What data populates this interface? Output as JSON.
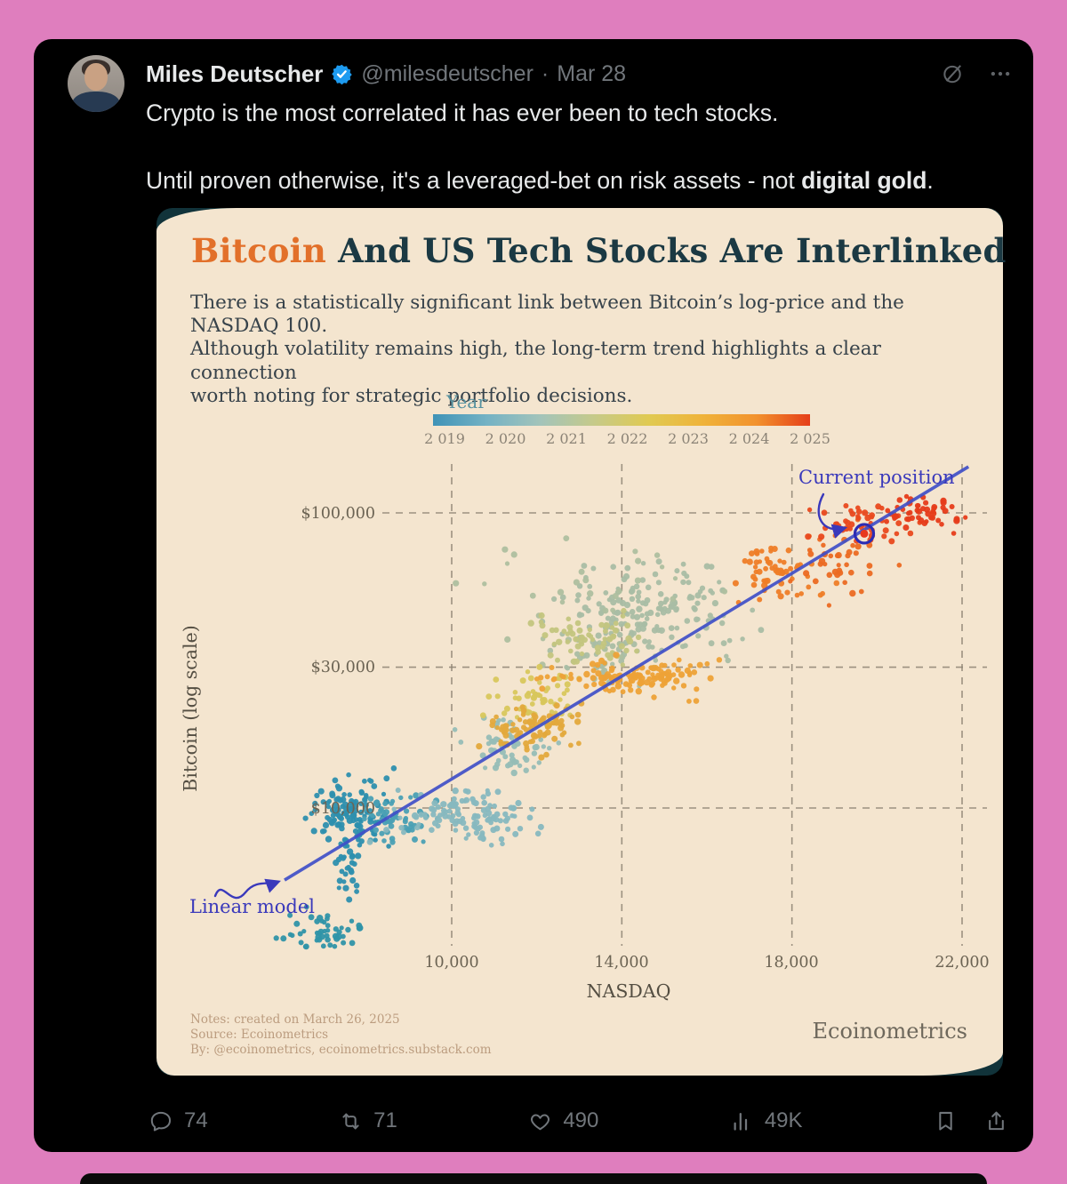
{
  "tweet": {
    "author": "Miles Deutscher",
    "handle": "@milesdeutscher",
    "separator": "·",
    "date": "Mar 28",
    "text_line1": "Crypto is the most correlated it has ever been to tech stocks.",
    "text_line2_prefix": "Until proven otherwise, it's a leveraged-bet on risk assets - not ",
    "text_line2_bold": "digital gold",
    "text_line2_suffix": ".",
    "footer": {
      "replies": "74",
      "reposts": "71",
      "likes": "490",
      "views": "49K"
    }
  },
  "chart": {
    "title_accent": "Bitcoin",
    "title_rest": " And US Tech Stocks Are Interlinked",
    "subtitle": "There is a statistically significant link between Bitcoin’s log-price and the NASDAQ 100.\nAlthough volatility remains high, the long-term trend highlights a clear connection\nworth noting for strategic portfolio decisions.",
    "legend": {
      "label": "Year",
      "ticks": [
        "2 019",
        "2 020",
        "2 021",
        "2 022",
        "2 023",
        "2 024",
        "2 025"
      ]
    },
    "axes": {
      "x_label": "NASDAQ",
      "y_label": "Bitcoin (log scale)",
      "x_tick_labels": [
        "10,000",
        "14,000",
        "18,000",
        "22,000"
      ],
      "y_tick_labels": [
        "$100,000",
        "$30,000",
        "$10,000"
      ]
    },
    "annotations": {
      "current_position": "Current position",
      "linear_model": "Linear model"
    },
    "notes": [
      "Notes: created on March 26, 2025",
      "Source: Ecoinometrics",
      "By: @ecoinometrics, ecoinometrics.substack.com"
    ],
    "brand": "Ecoinometrics"
  },
  "chart_data": {
    "type": "scatter",
    "title": "Bitcoin And US Tech Stocks Are Interlinked",
    "xlabel": "NASDAQ",
    "ylabel": "Bitcoin (log scale)",
    "x_scale": "linear",
    "y_scale": "log",
    "x_ticks": [
      10000,
      14000,
      18000,
      22000
    ],
    "y_ticks": [
      100000,
      30000,
      10000
    ],
    "x_range": [
      5200,
      23000
    ],
    "y_range": [
      3000,
      150000
    ],
    "grid": "dashed",
    "colorbar": {
      "label": "Year",
      "min": 2019,
      "max": 2025,
      "stops": [
        "#3f93b7",
        "#74b2c4",
        "#a3c4ba",
        "#c6ca89",
        "#e0ca52",
        "#efb33a",
        "#f2922d",
        "#e53e19"
      ]
    },
    "trend_line": {
      "color": "#4050c8",
      "x": [
        6070,
        22150
      ],
      "y": [
        5700,
        143400
      ]
    },
    "current_position": {
      "nasdaq": 19700,
      "btc": 85000,
      "ring_color": "#2c2cb4",
      "dot_color": "#e8391d"
    },
    "clusters": [
      {
        "year": 2019.0,
        "n": 120,
        "nasdaq": 7600,
        "btc": 9800,
        "sd_nasdaq": 420,
        "sd_log_btc": 0.055,
        "color": "#2d8fae"
      },
      {
        "year": 2019.2,
        "n": 28,
        "nasdaq": 7520,
        "btc": 6300,
        "sd_nasdaq": 170,
        "sd_log_btc": 0.055,
        "color": "#2d8fae"
      },
      {
        "year": 2019.1,
        "n": 48,
        "nasdaq": 7000,
        "btc": 3800,
        "sd_nasdaq": 520,
        "sd_log_btc": 0.032,
        "color": "#2f93a8"
      },
      {
        "year": 2019.8,
        "n": 55,
        "nasdaq": 8700,
        "btc": 9200,
        "sd_nasdaq": 420,
        "sd_log_btc": 0.038,
        "color": "#4aa0b4"
      },
      {
        "year": 2020.3,
        "n": 120,
        "nasdaq": 10300,
        "btc": 9400,
        "sd_nasdaq": 850,
        "sd_log_btc": 0.042,
        "color": "#87b8bf"
      },
      {
        "year": 2020.8,
        "n": 55,
        "nasdaq": 11400,
        "btc": 16000,
        "sd_nasdaq": 520,
        "sd_log_btc": 0.055,
        "color": "#96bdb6"
      },
      {
        "year": 2021.4,
        "n": 165,
        "nasdaq": 14700,
        "btc": 47000,
        "sd_nasdaq": 950,
        "sd_log_btc": 0.075,
        "color": "#a9bda4"
      },
      {
        "year": 2021.6,
        "n": 45,
        "nasdaq": 13700,
        "btc": 33500,
        "sd_nasdaq": 550,
        "sd_log_btc": 0.05,
        "color": "#a9bda4"
      },
      {
        "year": 2021.9,
        "n": 35,
        "nasdaq": 13500,
        "btc": 52000,
        "sd_nasdaq": 1500,
        "sd_log_btc": 0.11,
        "color": "#aebf9f"
      },
      {
        "year": 2022.1,
        "n": 65,
        "nasdaq": 13100,
        "btc": 37000,
        "sd_nasdaq": 650,
        "sd_log_btc": 0.05,
        "color": "#c3c57e"
      },
      {
        "year": 2022.4,
        "n": 60,
        "nasdaq": 12100,
        "btc": 24000,
        "sd_nasdaq": 600,
        "sd_log_btc": 0.05,
        "color": "#d8c75c"
      },
      {
        "year": 2022.8,
        "n": 85,
        "nasdaq": 11800,
        "btc": 18500,
        "sd_nasdaq": 550,
        "sd_log_btc": 0.04,
        "color": "#e3a93c"
      },
      {
        "year": 2023.5,
        "n": 130,
        "nasdaq": 14300,
        "btc": 27800,
        "sd_nasdaq": 1000,
        "sd_log_btc": 0.028,
        "color": "#eda237"
      },
      {
        "year": 2024.2,
        "n": 60,
        "nasdaq": 17600,
        "btc": 62000,
        "sd_nasdaq": 480,
        "sd_log_btc": 0.05,
        "color": "#ee7d27"
      },
      {
        "year": 2024.6,
        "n": 40,
        "nasdaq": 19000,
        "btc": 67000,
        "sd_nasdaq": 550,
        "sd_log_btc": 0.05,
        "color": "#eb6a22"
      },
      {
        "year": 2024.9,
        "n": 50,
        "nasdaq": 19700,
        "btc": 92000,
        "sd_nasdaq": 600,
        "sd_log_btc": 0.035,
        "color": "#e9491d"
      },
      {
        "year": 2025.2,
        "n": 45,
        "nasdaq": 21100,
        "btc": 101000,
        "sd_nasdaq": 450,
        "sd_log_btc": 0.03,
        "color": "#e63c1a"
      }
    ]
  }
}
